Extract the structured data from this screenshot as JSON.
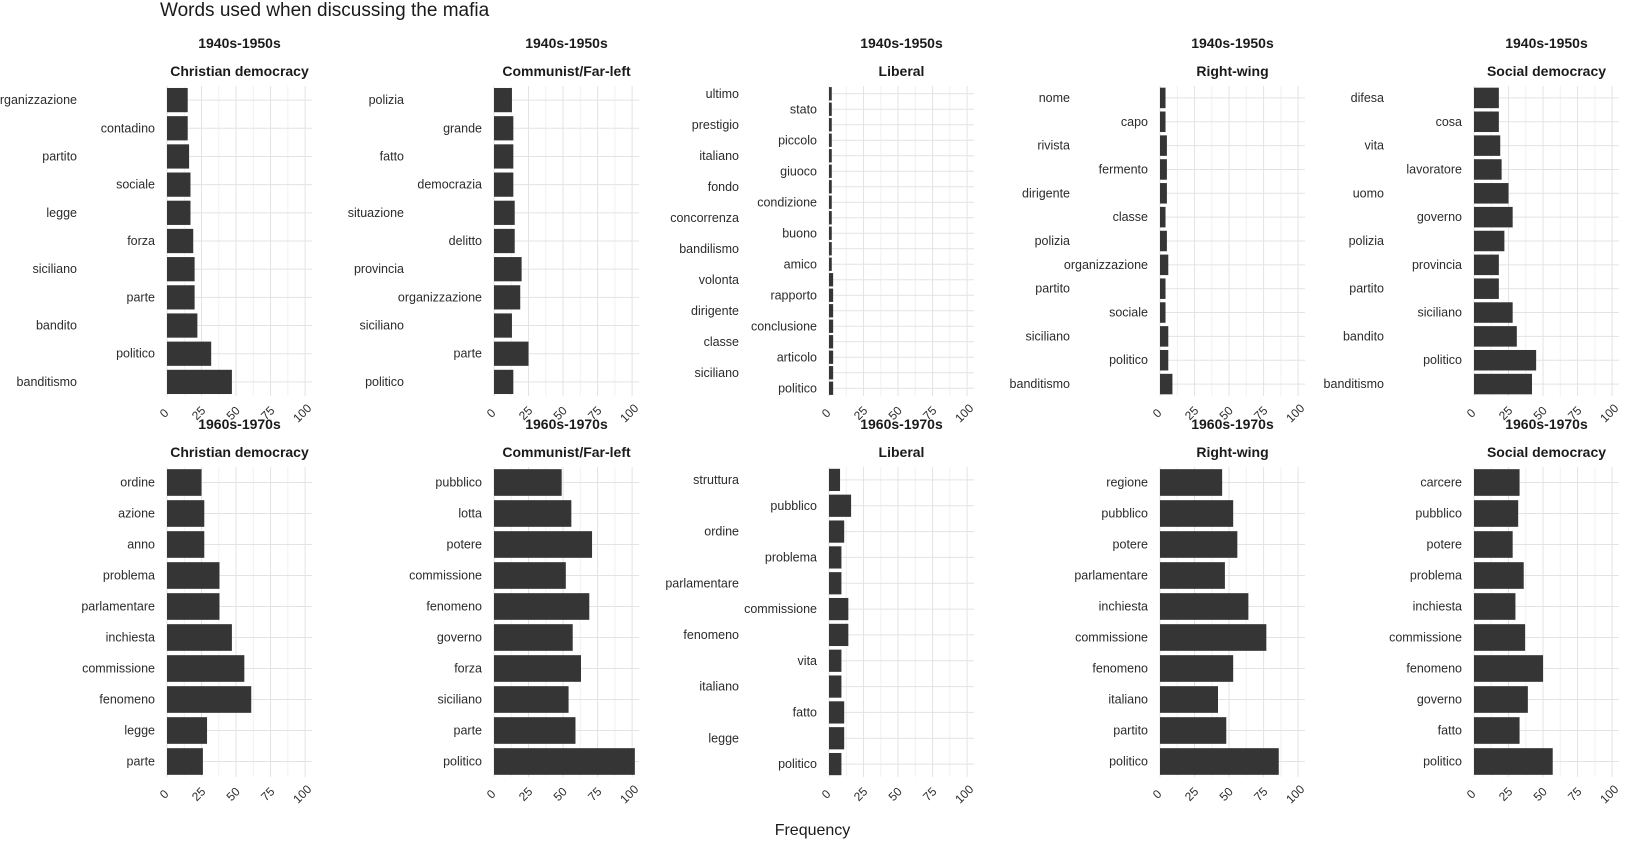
{
  "title": "Words used when discussing the mafia",
  "chart_data": {
    "type": "bar",
    "orientation": "horizontal",
    "title": "Words used when discussing the mafia",
    "xlabel": "Frequency",
    "ylabel": "",
    "xlim": [
      0,
      105
    ],
    "x_ticks": [
      0,
      25,
      50,
      75,
      100
    ],
    "grid": true,
    "bar_color": "#353535",
    "panels": [
      {
        "period": "1940s-1950s",
        "party": "Christian democracy",
        "categories": [
          "organizzazione",
          "contadino",
          "partito",
          "sociale",
          "legge",
          "forza",
          "siciliano",
          "parte",
          "bandito",
          "politico",
          "banditismo"
        ],
        "values": [
          15,
          15,
          16,
          17,
          17,
          19,
          20,
          20,
          22,
          32,
          47
        ]
      },
      {
        "period": "1940s-1950s",
        "party": "Communist/Far-left",
        "categories": [
          "polizia",
          "grande",
          "fatto",
          "democrazia",
          "situazione",
          "delitto",
          "provincia",
          "organizzazione",
          "siciliano",
          "parte",
          "politico"
        ],
        "values": [
          13,
          14,
          14,
          14,
          15,
          15,
          20,
          19,
          13,
          25,
          14
        ]
      },
      {
        "period": "1940s-1950s",
        "party": "Liberal",
        "categories": [
          "ultimo",
          "stato",
          "prestigio",
          "piccolo",
          "italiano",
          "giuoco",
          "fondo",
          "condizione",
          "concorrenza",
          "buono",
          "bandilismo",
          "amico",
          "volonta",
          "rapporto",
          "dirigente",
          "conclusione",
          "classe",
          "articolo",
          "siciliano",
          "politico"
        ],
        "values": [
          2,
          2,
          2,
          2,
          2,
          2,
          2,
          2,
          2,
          2,
          2,
          2,
          3,
          3,
          3,
          3,
          3,
          3,
          3,
          3
        ]
      },
      {
        "period": "1940s-1950s",
        "party": "Right-wing",
        "categories": [
          "nome",
          "capo",
          "rivista",
          "fermento",
          "dirigente",
          "classe",
          "polizia",
          "organizzazione",
          "partito",
          "sociale",
          "siciliano",
          "politico",
          "banditismo"
        ],
        "values": [
          4,
          4,
          5,
          5,
          5,
          4,
          5,
          6,
          4,
          4,
          6,
          6,
          9
        ]
      },
      {
        "period": "1940s-1950s",
        "party": "Social democracy",
        "categories": [
          "difesa",
          "cosa",
          "vita",
          "lavoratore",
          "uomo",
          "governo",
          "polizia",
          "provincia",
          "partito",
          "siciliano",
          "bandito",
          "politico",
          "banditismo"
        ],
        "values": [
          18,
          18,
          19,
          20,
          25,
          28,
          22,
          18,
          18,
          28,
          31,
          45,
          42
        ]
      },
      {
        "period": "1960s-1970s",
        "party": "Christian democracy",
        "categories": [
          "ordine",
          "azione",
          "anno",
          "problema",
          "parlamentare",
          "inchiesta",
          "commissione",
          "fenomeno",
          "legge",
          "parte"
        ],
        "values": [
          25,
          27,
          27,
          38,
          38,
          47,
          56,
          61,
          29,
          26
        ]
      },
      {
        "period": "1960s-1970s",
        "party": "Communist/Far-left",
        "categories": [
          "pubblico",
          "lotta",
          "potere",
          "commissione",
          "fenomeno",
          "governo",
          "forza",
          "siciliano",
          "parte",
          "politico"
        ],
        "values": [
          49,
          56,
          71,
          52,
          69,
          57,
          63,
          54,
          59,
          102
        ]
      },
      {
        "period": "1960s-1970s",
        "party": "Liberal",
        "categories": [
          "struttura",
          "pubblico",
          "ordine",
          "problema",
          "parlamentare",
          "commissione",
          "fenomeno",
          "vita",
          "italiano",
          "fatto",
          "legge",
          "politico"
        ],
        "values": [
          8,
          16,
          11,
          9,
          9,
          14,
          14,
          9,
          9,
          11,
          11,
          9
        ]
      },
      {
        "period": "1960s-1970s",
        "party": "Right-wing",
        "categories": [
          "regione",
          "pubblico",
          "potere",
          "parlamentare",
          "inchiesta",
          "commissione",
          "fenomeno",
          "italiano",
          "partito",
          "politico"
        ],
        "values": [
          45,
          53,
          56,
          47,
          64,
          77,
          53,
          42,
          48,
          86
        ]
      },
      {
        "period": "1960s-1970s",
        "party": "Social democracy",
        "categories": [
          "carcere",
          "pubblico",
          "potere",
          "problema",
          "inchiesta",
          "commissione",
          "fenomeno",
          "governo",
          "fatto",
          "politico"
        ],
        "values": [
          33,
          32,
          28,
          36,
          30,
          37,
          50,
          39,
          33,
          57
        ]
      }
    ]
  }
}
